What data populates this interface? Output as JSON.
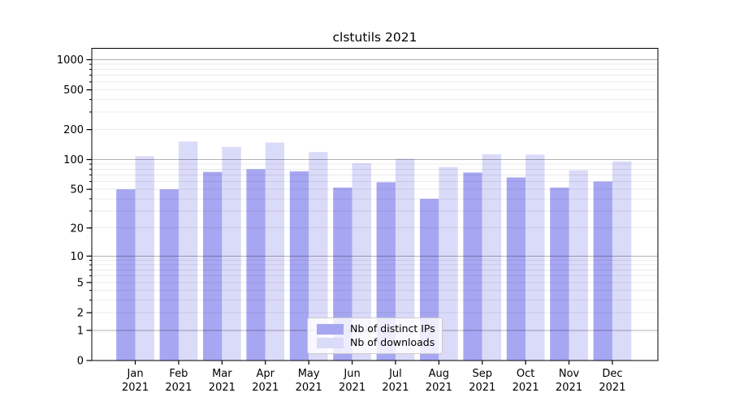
{
  "chart_data": {
    "type": "bar",
    "title": "clstutils 2021",
    "categories": [
      "Jan 2021",
      "Feb 2021",
      "Mar 2021",
      "Apr 2021",
      "May 2021",
      "Jun 2021",
      "Jul 2021",
      "Aug 2021",
      "Sep 2021",
      "Oct 2021",
      "Nov 2021",
      "Dec 2021"
    ],
    "series": [
      {
        "name": "Nb of distinct IPs",
        "color": "#a6a6f2",
        "values": [
          50,
          50,
          75,
          80,
          76,
          52,
          59,
          40,
          74,
          66,
          52,
          60
        ]
      },
      {
        "name": "Nb of downloads",
        "color": "#dadaf9",
        "values": [
          108,
          152,
          134,
          148,
          119,
          92,
          102,
          84,
          113,
          112,
          78,
          96
        ]
      }
    ],
    "xlabel": "",
    "ylabel": "",
    "y_axis": {
      "scale": "log10(value+1)",
      "tick_labels": [
        "0",
        "1",
        "2",
        "5",
        "10",
        "20",
        "50",
        "100",
        "200",
        "500",
        "1000"
      ],
      "tick_values": [
        0,
        1,
        2,
        5,
        10,
        20,
        50,
        100,
        200,
        500,
        1000
      ],
      "range": [
        0,
        1300
      ]
    },
    "grid": "horizontal, major and minor",
    "legend_position": "bottom-center"
  },
  "colors": {
    "background": "#ffffff",
    "axis_line": "#000000",
    "major_gridline": "#b3b3b3",
    "minor_gridline": "#ebebeb",
    "tick_text": "#000000"
  }
}
